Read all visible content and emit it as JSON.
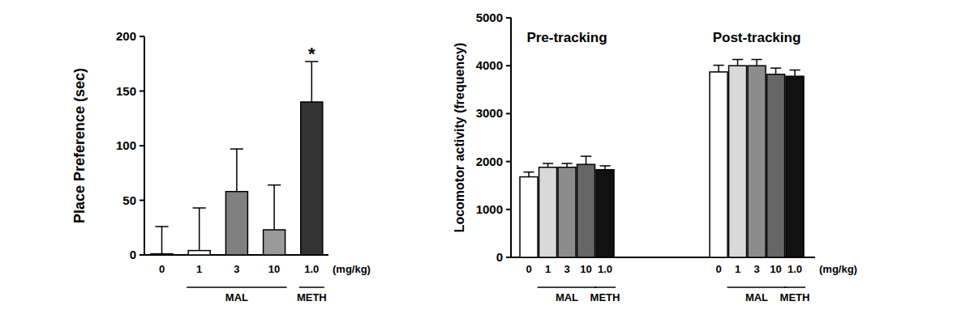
{
  "chart_data": [
    {
      "type": "bar",
      "y_label": "Place Preference (sec)",
      "categories": [
        "0",
        "1",
        "3",
        "10",
        "1.0"
      ],
      "values": [
        1,
        4,
        58,
        23,
        140
      ],
      "errors": [
        25,
        39,
        39,
        41,
        37
      ],
      "colors": [
        "#ffffff",
        "#ffffff",
        "#808080",
        "#9a9a9a",
        "#333333"
      ],
      "ylim": [
        0,
        200
      ],
      "yticks": [
        0,
        50,
        100,
        150,
        200
      ],
      "annotations": [
        {
          "text": "*",
          "category": "1.0"
        }
      ],
      "groups": [
        {
          "label": "MAL",
          "categories": [
            "1",
            "3",
            "10"
          ]
        },
        {
          "label": "METH",
          "categories": [
            "1.0"
          ]
        }
      ],
      "unit_label": "(mg/kg)"
    },
    {
      "type": "bar",
      "y_label": "Locomotor activity (frequency)",
      "categories": [
        "Pre-tracking",
        "Post-tracking"
      ],
      "series": [
        {
          "name": "0",
          "color": "#ffffff",
          "values": [
            1680,
            3870
          ],
          "errors": [
            100,
            140
          ]
        },
        {
          "name": "1",
          "color": "#d9d9d9",
          "values": [
            1880,
            4000
          ],
          "errors": [
            80,
            130
          ]
        },
        {
          "name": "3",
          "color": "#8c8c8c",
          "values": [
            1880,
            4000
          ],
          "errors": [
            80,
            130
          ]
        },
        {
          "name": "10",
          "color": "#666666",
          "values": [
            1940,
            3820
          ],
          "errors": [
            170,
            130
          ]
        },
        {
          "name": "1.0",
          "color": "#111111",
          "values": [
            1830,
            3780
          ],
          "errors": [
            80,
            130
          ]
        }
      ],
      "ylim": [
        0,
        5000
      ],
      "yticks": [
        0,
        1000,
        2000,
        3000,
        4000,
        5000
      ],
      "groups": [
        {
          "label": "MAL",
          "categories": [
            "1",
            "3",
            "10"
          ]
        },
        {
          "label": "METH",
          "categories": [
            "1.0"
          ]
        }
      ],
      "unit_label": "(mg/kg)"
    }
  ]
}
